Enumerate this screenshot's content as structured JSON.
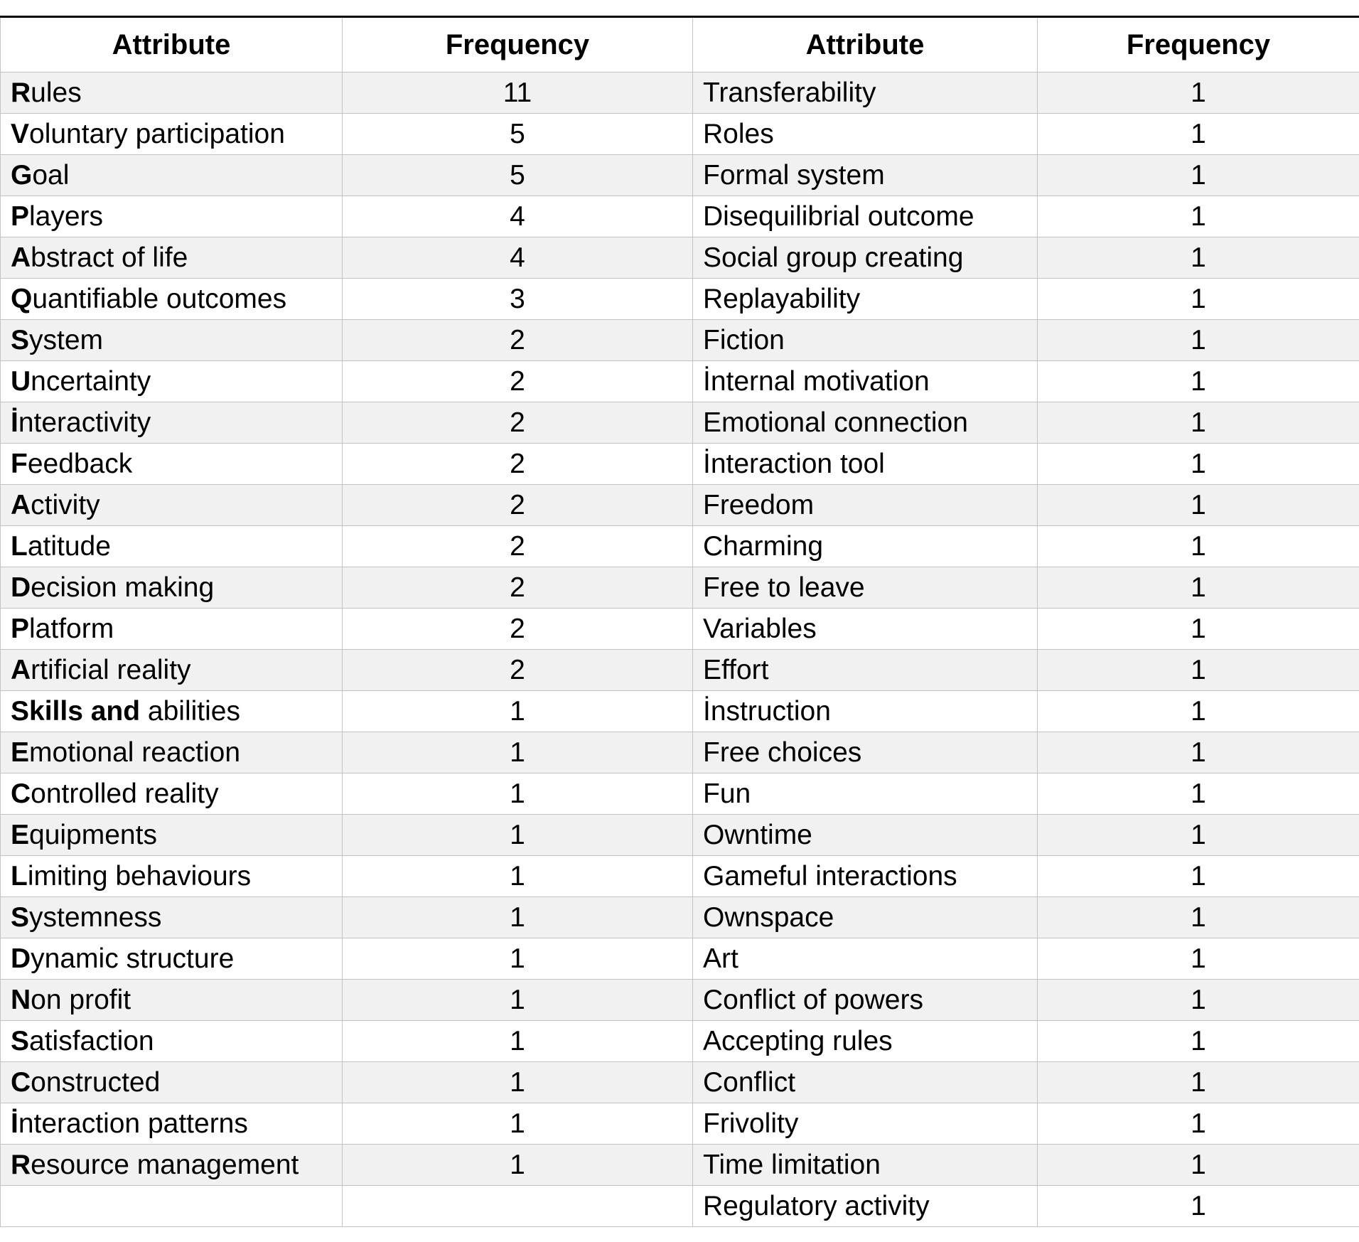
{
  "table": {
    "headers": [
      "Attribute",
      "Frequency",
      "Attribute",
      "Frequency"
    ],
    "left_rows": [
      {
        "bold": "R",
        "rest": "ules",
        "freq": "11"
      },
      {
        "bold": "V",
        "rest": "oluntary participation",
        "freq": "5"
      },
      {
        "bold": "G",
        "rest": "oal",
        "freq": "5"
      },
      {
        "bold": "P",
        "rest": "layers",
        "freq": "4"
      },
      {
        "bold": "A",
        "rest": "bstract of life",
        "freq": "4"
      },
      {
        "bold": "Q",
        "rest": "uantifiable outcomes",
        "freq": "3"
      },
      {
        "bold": "S",
        "rest": "ystem",
        "freq": "2"
      },
      {
        "bold": "U",
        "rest": "ncertainty",
        "freq": "2"
      },
      {
        "bold": "İ",
        "rest": "nteractivity",
        "freq": "2"
      },
      {
        "bold": "F",
        "rest": "eedback",
        "freq": "2"
      },
      {
        "bold": "A",
        "rest": "ctivity",
        "freq": "2"
      },
      {
        "bold": "L",
        "rest": "atitude",
        "freq": "2"
      },
      {
        "bold": "D",
        "rest": "ecision making",
        "freq": "2"
      },
      {
        "bold": "P",
        "rest": "latform",
        "freq": "2"
      },
      {
        "bold": "A",
        "rest": "rtificial reality",
        "freq": "2"
      },
      {
        "bold": "Skills and",
        "rest": " abilities",
        "freq": "1"
      },
      {
        "bold": "E",
        "rest": "motional reaction",
        "freq": "1"
      },
      {
        "bold": "C",
        "rest": "ontrolled reality",
        "freq": "1"
      },
      {
        "bold": "E",
        "rest": "quipments",
        "freq": "1"
      },
      {
        "bold": "L",
        "rest": "imiting behaviours",
        "freq": "1"
      },
      {
        "bold": "S",
        "rest": "ystemness",
        "freq": "1"
      },
      {
        "bold": "D",
        "rest": "ynamic structure",
        "freq": "1"
      },
      {
        "bold": "N",
        "rest": "on profit",
        "freq": "1"
      },
      {
        "bold": "S",
        "rest": "atisfaction",
        "freq": "1"
      },
      {
        "bold": "C",
        "rest": "onstructed",
        "freq": "1"
      },
      {
        "bold": "İ",
        "rest": "nteraction patterns",
        "freq": "1"
      },
      {
        "bold": "R",
        "rest": "esource management",
        "freq": "1"
      },
      {
        "bold": "",
        "rest": "",
        "freq": ""
      }
    ],
    "right_rows": [
      {
        "label": "Transferability",
        "freq": "1"
      },
      {
        "label": "Roles",
        "freq": "1"
      },
      {
        "label": "Formal system",
        "freq": "1"
      },
      {
        "label": "Disequilibrial outcome",
        "freq": "1"
      },
      {
        "label": "Social group creating",
        "freq": "1"
      },
      {
        "label": "Replayability",
        "freq": "1"
      },
      {
        "label": "Fiction",
        "freq": "1"
      },
      {
        "label": "İnternal motivation",
        "freq": "1"
      },
      {
        "label": "Emotional connection",
        "freq": "1"
      },
      {
        "label": "İnteraction tool",
        "freq": "1"
      },
      {
        "label": "Freedom",
        "freq": "1"
      },
      {
        "label": "Charming",
        "freq": "1"
      },
      {
        "label": "Free to leave",
        "freq": "1"
      },
      {
        "label": "Variables",
        "freq": "1"
      },
      {
        "label": "Effort",
        "freq": "1"
      },
      {
        "label": "İnstruction",
        "freq": "1"
      },
      {
        "label": "Free choices",
        "freq": "1"
      },
      {
        "label": "Fun",
        "freq": "1"
      },
      {
        "label": "Owntime",
        "freq": "1"
      },
      {
        "label": "Gameful interactions",
        "freq": "1"
      },
      {
        "label": "Ownspace",
        "freq": "1"
      },
      {
        "label": "Art",
        "freq": "1"
      },
      {
        "label": "Conflict of powers",
        "freq": "1"
      },
      {
        "label": "Accepting rules",
        "freq": "1"
      },
      {
        "label": "Conflict",
        "freq": "1"
      },
      {
        "label": "Frivolity",
        "freq": "1"
      },
      {
        "label": "Time limitation",
        "freq": "1"
      },
      {
        "label": "Regulatory activity",
        "freq": "1"
      }
    ],
    "colors": {
      "stripe_row": "#f1f1f1",
      "plain_row": "#ffffff",
      "cell_border": "#c3c3c3",
      "top_rule": "#000000",
      "text": "#000000"
    }
  }
}
